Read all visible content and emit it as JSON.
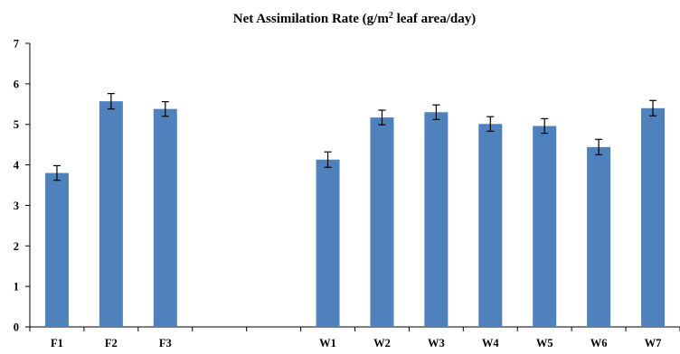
{
  "chart_data": {
    "type": "bar",
    "title_main": "Net Assimilation Rate (g/m",
    "title_sup": "2",
    "title_rest": " leaf area/day)",
    "categories": [
      "F1",
      "F2",
      "F3",
      "",
      "",
      "W1",
      "W2",
      "W3",
      "W4",
      "W5",
      "W6",
      "W7"
    ],
    "values": [
      3.8,
      5.57,
      5.38,
      null,
      null,
      4.13,
      5.17,
      5.3,
      5.01,
      4.96,
      4.44,
      5.4
    ],
    "errors": [
      0.18,
      0.19,
      0.18,
      null,
      null,
      0.19,
      0.18,
      0.18,
      0.18,
      0.18,
      0.19,
      0.19
    ],
    "ylim": [
      0,
      7
    ],
    "yticks": [
      "0",
      "1",
      "2",
      "3",
      "4",
      "5",
      "6",
      "7"
    ],
    "bar_color": "#4F81BD",
    "xlabel": "",
    "ylabel": "",
    "grid": false
  }
}
